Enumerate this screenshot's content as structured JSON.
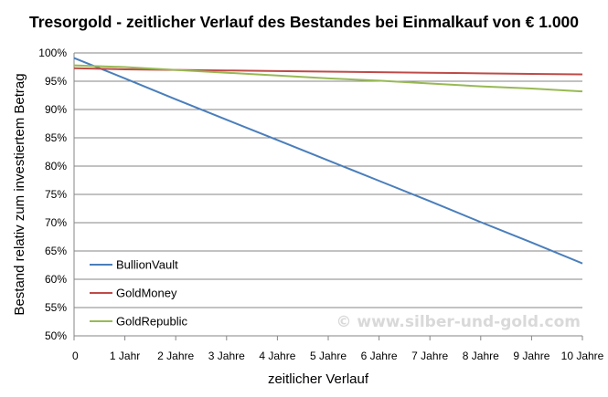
{
  "chart_data": {
    "type": "line",
    "title": "Tresorgold - zeitlicher Verlauf des Bestandes bei Einmalkauf von € 1.000",
    "xlabel": "zeitlicher Verlauf",
    "ylabel": "Bestand relativ zum investiertem Betrag",
    "x": [
      0,
      1,
      2,
      3,
      4,
      5,
      6,
      7,
      8,
      9,
      10
    ],
    "x_tick_labels": [
      "0",
      "1 Jahr",
      "2 Jahre",
      "3 Jahre",
      "4 Jahre",
      "5 Jahre",
      "6 Jahre",
      "7 Jahre",
      "8 Jahre",
      "9 Jahre",
      "10 Jahre"
    ],
    "ylim": [
      50,
      100
    ],
    "y_ticks": [
      50,
      55,
      60,
      65,
      70,
      75,
      80,
      85,
      90,
      95,
      100
    ],
    "y_tick_labels": [
      "50%",
      "55%",
      "60%",
      "65%",
      "70%",
      "75%",
      "80%",
      "85%",
      "90%",
      "95%",
      "100%"
    ],
    "grid": true,
    "legend_position": "left-bottom",
    "series": [
      {
        "name": "BullionVault",
        "color": "#4a7ebb",
        "values": [
          99.1,
          95.5,
          91.8,
          88.2,
          84.6,
          81.0,
          77.4,
          73.8,
          70.1,
          66.5,
          62.8
        ]
      },
      {
        "name": "GoldMoney",
        "color": "#be4b48",
        "values": [
          97.3,
          97.1,
          97.0,
          96.9,
          96.8,
          96.7,
          96.6,
          96.5,
          96.4,
          96.3,
          96.2
        ]
      },
      {
        "name": "GoldRepublic",
        "color": "#98b954",
        "values": [
          97.8,
          97.5,
          97.0,
          96.5,
          96.0,
          95.5,
          95.1,
          94.6,
          94.1,
          93.7,
          93.2
        ]
      }
    ],
    "watermark": "© www.silber-und-gold.com"
  }
}
